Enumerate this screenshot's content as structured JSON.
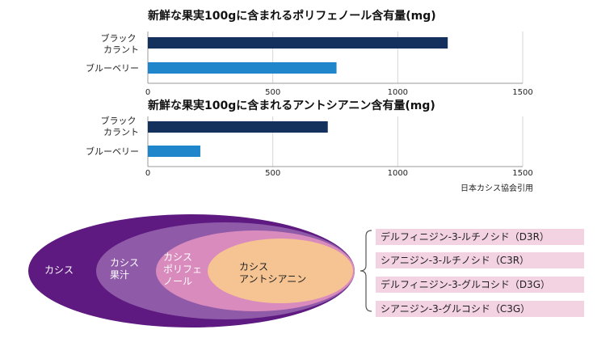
{
  "chart_data": [
    {
      "type": "bar",
      "orientation": "horizontal",
      "title": "新鮮な果実100gに含まれるポリフェノール含有量(mg)",
      "categories": [
        [
          "ブラック",
          "カラント"
        ],
        [
          "ブルーベリー"
        ]
      ],
      "values": [
        1200,
        755
      ],
      "colors": [
        "#14305c",
        "#1f86cc"
      ],
      "xlim": [
        0,
        1500
      ],
      "xticks": [
        "0",
        "500",
        "1000",
        "1500"
      ],
      "grid": "x"
    },
    {
      "type": "bar",
      "orientation": "horizontal",
      "title": "新鮮な果実100gに含まれるアントシアニン含有量(mg)",
      "categories": [
        [
          "ブラック",
          "カラント"
        ],
        [
          "ブルーベリー"
        ]
      ],
      "values": [
        720,
        210
      ],
      "colors": [
        "#14305c",
        "#1f86cc"
      ],
      "xlim": [
        0,
        1500
      ],
      "xticks": [
        "0",
        "500",
        "1000",
        "1500"
      ],
      "grid": "x",
      "source": "日本カシス協会引用"
    }
  ],
  "diagram": {
    "ellipses": [
      {
        "lines": [
          "カシス"
        ],
        "color": "#5e1a80"
      },
      {
        "lines": [
          "カシス",
          "果汁"
        ],
        "color": "#8f5aa8"
      },
      {
        "lines": [
          "カシス",
          "ポリフェ",
          "ノール"
        ],
        "color": "#d98bbd"
      },
      {
        "lines": [
          "カシス",
          "アントシアニン"
        ],
        "color": "#f6c493"
      }
    ],
    "components": [
      "デルフィニジン-3-ルチノシド（D3R）",
      "シアニジン-3-ルチノシド（C3R）",
      "デルフィニジン-3-グルコシド（D3G）",
      "シアニジン-3-グルコシド（C3G）"
    ]
  }
}
